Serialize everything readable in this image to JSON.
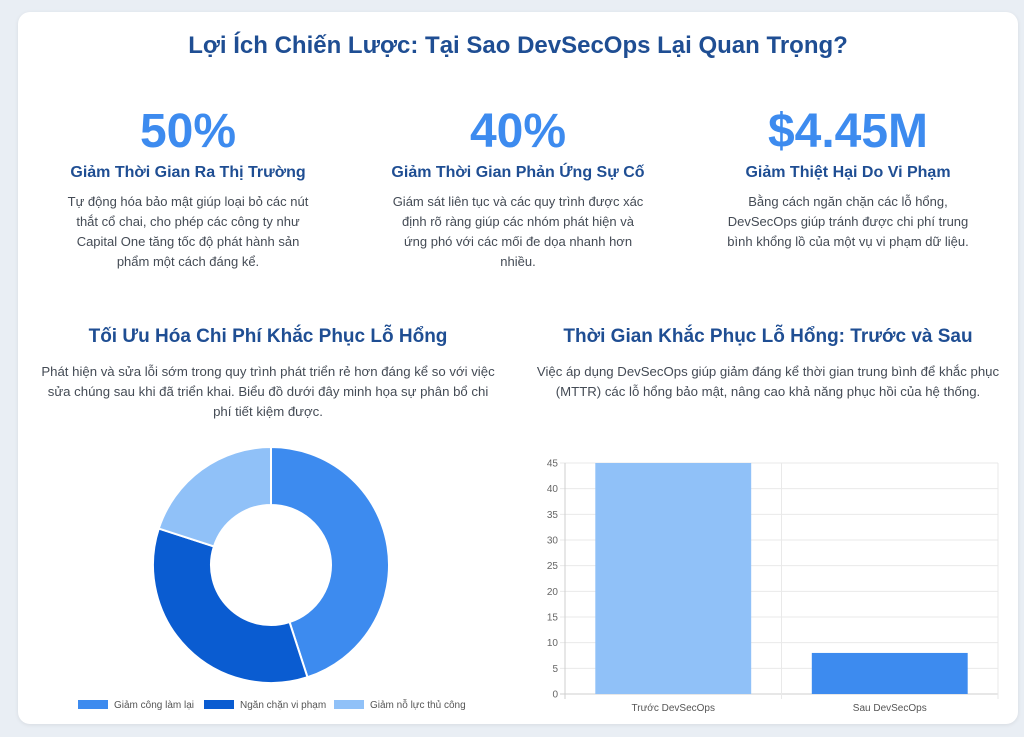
{
  "page": {
    "title": "Lợi Ích Chiến Lược: Tại Sao DevSecOps Lại Quan Trọng?"
  },
  "stats": [
    {
      "value": "50%",
      "label": "Giảm Thời Gian Ra Thị Trường",
      "description": "Tự động hóa bảo mật giúp loại bỏ các nút thắt cổ chai, cho phép các công ty như Capital One tăng tốc độ phát hành sản phẩm một cách đáng kể."
    },
    {
      "value": "40%",
      "label": "Giảm Thời Gian Phản Ứng Sự Cố",
      "description": "Giám sát liên tục và các quy trình được xác định rõ ràng giúp các nhóm phát hiện và ứng phó với các mối đe dọa nhanh hơn nhiều."
    },
    {
      "value": "$4.45M",
      "label": "Giảm Thiệt Hại Do Vi Phạm",
      "description": "Bằng cách ngăn chặn các lỗ hổng, DevSecOps giúp tránh được chi phí trung bình khổng lồ của một vụ vi phạm dữ liệu."
    }
  ],
  "cost_section": {
    "title": "Tối Ưu Hóa Chi Phí Khắc Phục Lỗ Hổng",
    "description": "Phát hiện và sửa lỗi sớm trong quy trình phát triển rẻ hơn đáng kể so với việc sửa chúng sau khi đã triển khai. Biểu đồ dưới đây minh họa sự phân bổ chi phí tiết kiệm được."
  },
  "mttr_section": {
    "title": "Thời Gian Khắc Phục Lỗ Hổng: Trước và Sau",
    "description": "Việc áp dụng DevSecOps giúp giảm đáng kể thời gian trung bình để khắc phục (MTTR) các lỗ hổng bảo mật, nâng cao khả năng phục hồi của hệ thống."
  },
  "chart_data": [
    {
      "type": "pie",
      "donut": true,
      "categories": [
        "Giảm công làm lại",
        "Ngăn chặn vi phạm",
        "Giảm nỗ lực thủ công"
      ],
      "values": [
        45,
        35,
        20
      ],
      "colors": [
        "#3d8bef",
        "#0a5cd1",
        "#90c1f8"
      ],
      "legend_position": "bottom"
    },
    {
      "type": "bar",
      "categories": [
        "Trước DevSecOps",
        "Sau DevSecOps"
      ],
      "values": [
        45,
        8
      ],
      "colors": [
        "#90c1f8",
        "#3d8bef"
      ],
      "ylim": [
        0,
        45
      ],
      "yticks": [
        0,
        5,
        10,
        15,
        20,
        25,
        30,
        35,
        40,
        45
      ],
      "grid": true,
      "legend": false
    }
  ]
}
